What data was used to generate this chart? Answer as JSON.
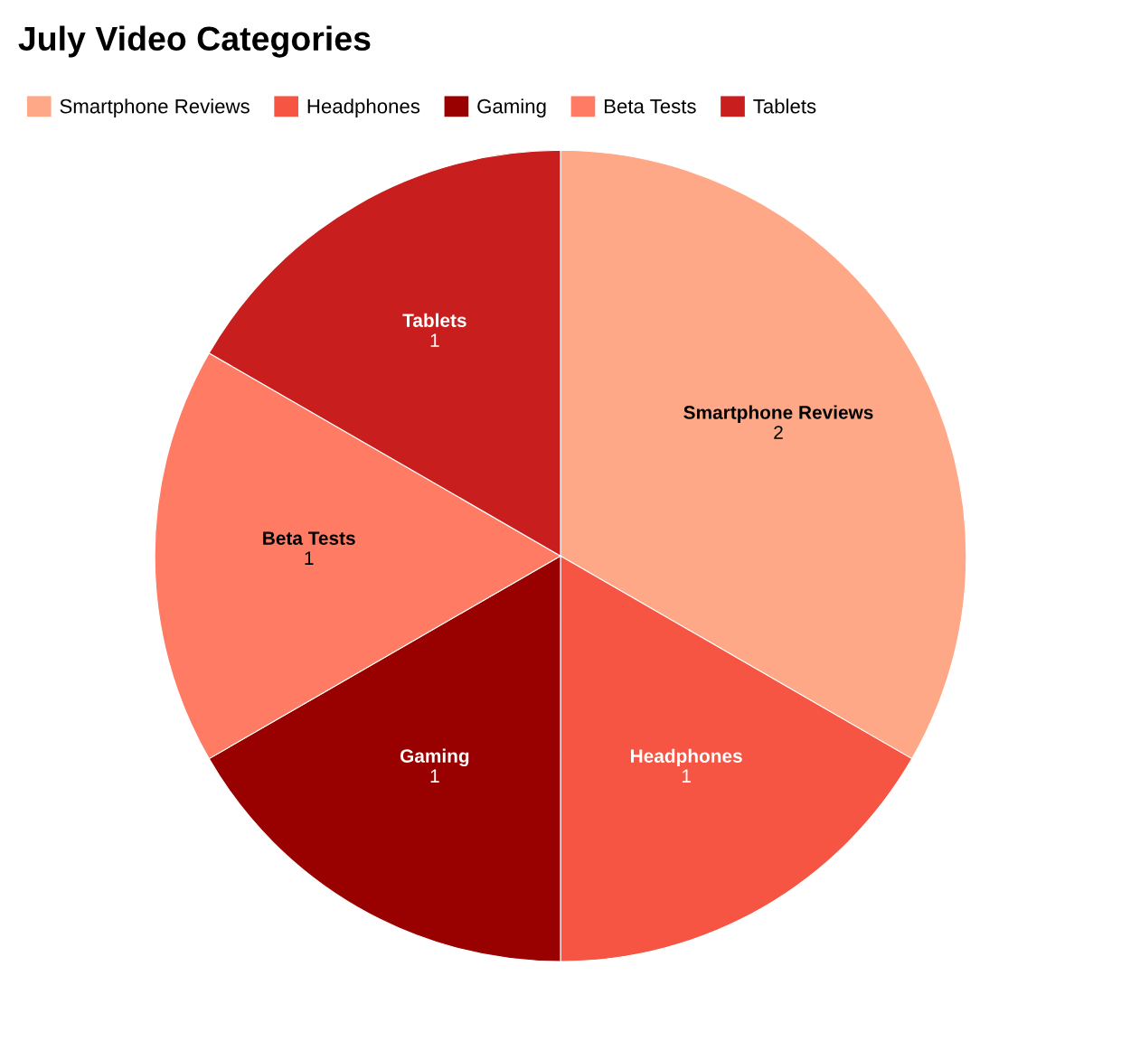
{
  "chart_data": {
    "type": "pie",
    "title": "July Video Categories",
    "categories": [
      "Smartphone Reviews",
      "Headphones",
      "Gaming",
      "Beta Tests",
      "Tablets"
    ],
    "values": [
      2,
      1,
      1,
      1,
      1
    ],
    "colors": [
      "#fea888",
      "#f55542",
      "#990000",
      "#ff7b63",
      "#c81e1e"
    ],
    "legend": "top left",
    "data_labels": true
  }
}
